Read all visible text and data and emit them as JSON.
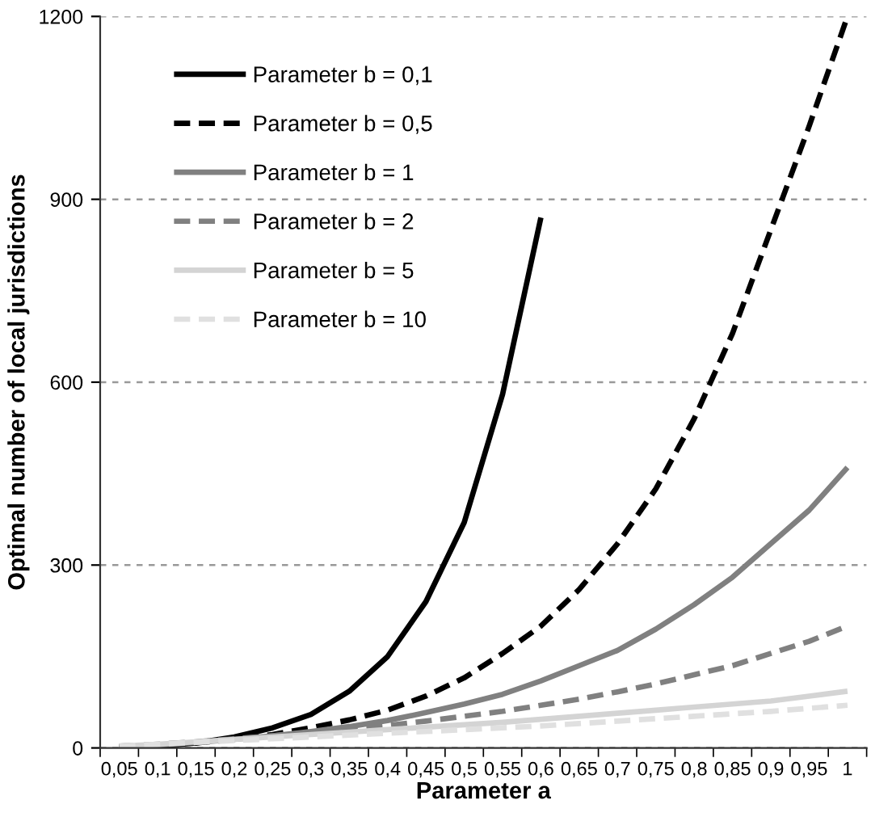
{
  "chart_data": {
    "type": "line",
    "xlabel": "Parameter a",
    "ylabel": "Optimal number of local jurisdictions",
    "categories": [
      "0,05",
      "0,1",
      "0,15",
      "0,2",
      "0,25",
      "0,3",
      "0,35",
      "0,4",
      "0,45",
      "0,5",
      "0,55",
      "0,6",
      "0,65",
      "0,7",
      "0,75",
      "0,8",
      "0,85",
      "0,9",
      "0,95",
      "1"
    ],
    "ylim": [
      0,
      1200
    ],
    "yticks": [
      0,
      300,
      600,
      900,
      1200
    ],
    "grid": "y",
    "legend": "top left",
    "marker": "none",
    "series": [
      {
        "name": "Parameter b = 0,1",
        "color": "#000000",
        "line_style": "solid",
        "values": [
          1,
          3,
          8,
          18,
          33,
          55,
          93,
          150,
          240,
          370,
          580,
          870,
          null,
          null,
          null,
          null,
          null,
          null,
          null,
          null
        ]
      },
      {
        "name": "Parameter b = 0,5",
        "color": "#000000",
        "line_style": "dashed",
        "values": [
          1,
          4,
          8,
          14,
          22,
          33,
          46,
          62,
          85,
          115,
          155,
          200,
          260,
          335,
          425,
          540,
          680,
          850,
          1020,
          1200
        ]
      },
      {
        "name": "Parameter b = 1",
        "color": "#808080",
        "line_style": "solid",
        "values": [
          2,
          5,
          9,
          14,
          20,
          27,
          35,
          45,
          58,
          72,
          88,
          110,
          135,
          160,
          195,
          235,
          280,
          335,
          390,
          460
        ]
      },
      {
        "name": "Parameter b = 2",
        "color": "#808080",
        "line_style": "dashed",
        "values": [
          3,
          6,
          10,
          15,
          20,
          25,
          31,
          37,
          44,
          52,
          60,
          70,
          80,
          92,
          105,
          120,
          135,
          155,
          175,
          200
        ]
      },
      {
        "name": "Parameter b = 5",
        "color": "#d4d4d4",
        "line_style": "solid",
        "values": [
          3,
          6,
          10,
          14,
          18,
          22,
          26,
          30,
          34,
          38,
          42,
          47,
          52,
          57,
          62,
          67,
          72,
          77,
          85,
          93
        ]
      },
      {
        "name": "Parameter b = 10",
        "color": "#e0e0e0",
        "line_style": "dashed",
        "values": [
          3,
          6,
          9,
          12,
          15,
          18,
          21,
          24,
          27,
          30,
          33,
          36,
          40,
          44,
          48,
          52,
          56,
          60,
          65,
          70
        ]
      }
    ]
  }
}
